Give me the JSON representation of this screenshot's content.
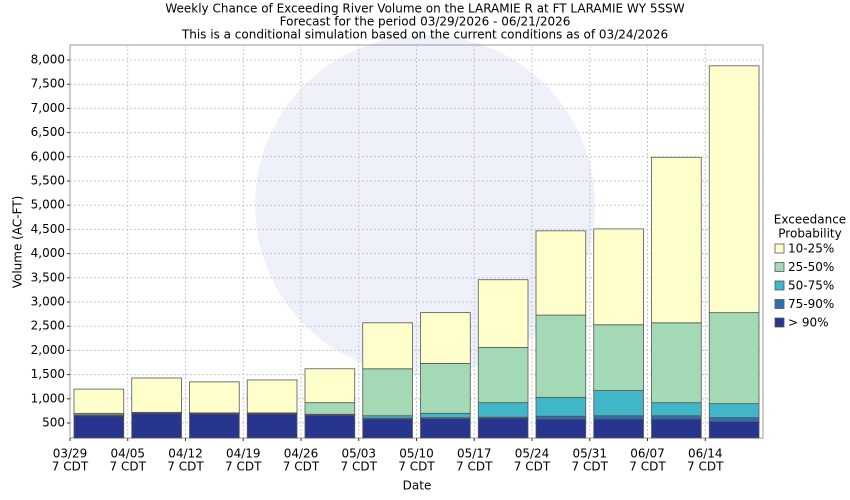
{
  "chart_data": {
    "type": "stacked_bar",
    "title": "Weekly Chance of Exceeding River Volume on the LARAMIE R at FT LARAMIE WY 5SSW",
    "subtitle": "Forecast for the period 03/29/2026 - 06/21/2026",
    "subtitle2": "This is a conditional simulation based on the current conditions as of 03/24/2026",
    "x_label": "Date",
    "y_label": "Volume (AC-FT)",
    "legend_title": "Exceedance",
    "legend_title2": "Probability",
    "categories": [
      "03/29",
      "04/05",
      "04/12",
      "04/19",
      "04/26",
      "05/03",
      "05/10",
      "05/17",
      "05/24",
      "05/31",
      "06/07",
      "06/14"
    ],
    "category_sublabel": "7 CDT",
    "series": [
      {
        "name": "> 90%",
        "color": "#27358f",
        "values": [
          650,
          700,
          690,
          690,
          660,
          580,
          590,
          600,
          580,
          580,
          580,
          530
        ]
      },
      {
        "name": "75-90%",
        "color": "#2e6fb0",
        "values": [
          10,
          0,
          10,
          10,
          10,
          20,
          20,
          20,
          60,
          70,
          70,
          80
        ]
      },
      {
        "name": "50-75%",
        "color": "#41b6c8",
        "values": [
          10,
          10,
          0,
          0,
          10,
          50,
          90,
          300,
          390,
          520,
          270,
          290
        ]
      },
      {
        "name": "25-50%",
        "color": "#a3dab5",
        "values": [
          30,
          10,
          10,
          10,
          240,
          970,
          1030,
          1140,
          1700,
          1360,
          1650,
          1880
        ]
      },
      {
        "name": "10-25%",
        "color": "#ffffcc",
        "values": [
          500,
          710,
          640,
          680,
          700,
          950,
          1050,
          1400,
          1740,
          1980,
          3420,
          5100
        ]
      }
    ],
    "ylim": [
      190,
      8310
    ],
    "yticks": [
      500,
      {
        "value": 1000,
        "label": "1,000"
      },
      {
        "value": 1500,
        "label": "1,500"
      },
      {
        "value": 2000,
        "label": "2,000"
      },
      {
        "value": 2500,
        "label": "2,500"
      },
      {
        "value": 3000,
        "label": "3,000"
      },
      {
        "value": 3500,
        "label": "3,500"
      },
      {
        "value": 4000,
        "label": "4,000"
      },
      {
        "value": 4500,
        "label": "4,500"
      },
      {
        "value": 5000,
        "label": "5,000"
      },
      {
        "value": 5500,
        "label": "5,500"
      },
      {
        "value": 6000,
        "label": "6,000"
      },
      {
        "value": 6500,
        "label": "6,500"
      },
      {
        "value": 7000,
        "label": "7,000"
      },
      {
        "value": 7500,
        "label": "7,500"
      },
      {
        "value": 8000,
        "label": "8,000"
      }
    ],
    "grid": true
  }
}
